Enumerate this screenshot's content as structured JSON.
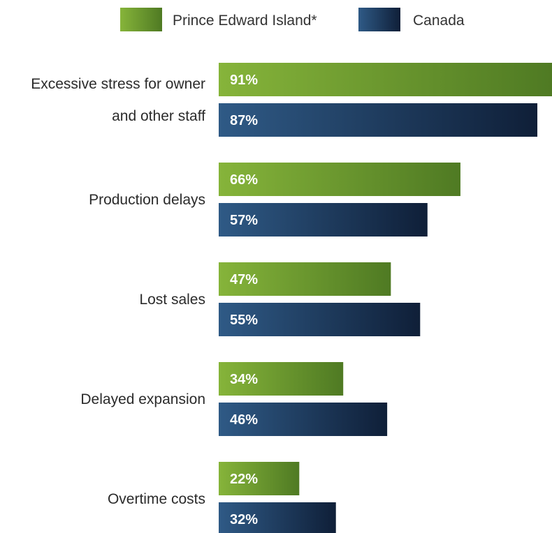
{
  "chart_data": {
    "type": "bar",
    "orientation": "horizontal",
    "title": "",
    "xlabel": "",
    "ylabel": "",
    "xlim": [
      0,
      91
    ],
    "grid": false,
    "legend_position": "top",
    "categories": [
      [
        "Excessive stress for owner",
        "and other staff"
      ],
      [
        "Production delays"
      ],
      [
        "Lost sales"
      ],
      [
        "Delayed expansion"
      ],
      [
        "Overtime costs"
      ]
    ],
    "series": [
      {
        "name": "Prince Edward Island*",
        "color": "#6f9a2c",
        "values": [
          91,
          66,
          47,
          34,
          22
        ],
        "labels": [
          "91%",
          "66%",
          "47%",
          "34%",
          "22%"
        ]
      },
      {
        "name": "Canada",
        "color": "#1d3a5c",
        "values": [
          87,
          57,
          55,
          46,
          32
        ],
        "labels": [
          "87%",
          "57%",
          "55%",
          "46%",
          "32%"
        ]
      }
    ]
  }
}
